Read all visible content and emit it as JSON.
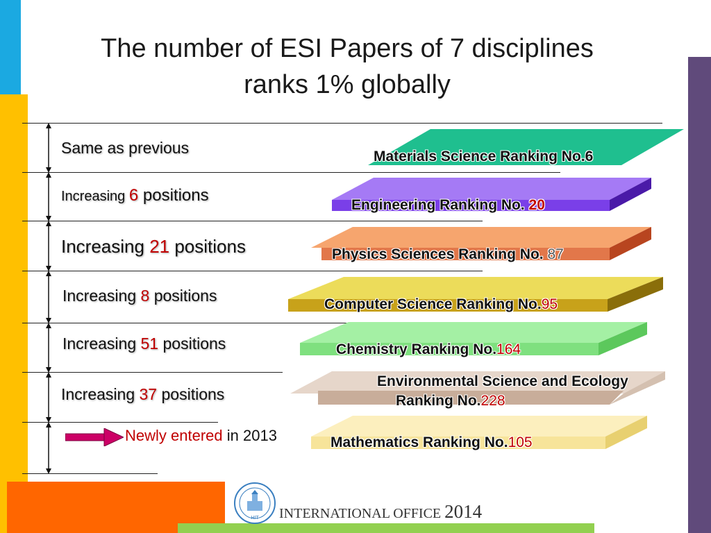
{
  "title_line1": "The number of ESI Papers of 7 disciplines",
  "title_line2": "ranks 1% globally",
  "rows": [
    {
      "change_text": "Same as previous",
      "discipline": "Materials Science Ranking No.",
      "rank": "6"
    },
    {
      "change_prefix": "Increasing ",
      "change_num": "6",
      "change_suffix": " positions",
      "discipline": "Engineering Ranking No. ",
      "rank": "20"
    },
    {
      "change_prefix": "Increasing ",
      "change_num": "21",
      "change_suffix": " positions",
      "discipline": "Physics Sciences Ranking No. ",
      "rank": "87"
    },
    {
      "change_prefix": "Increasing ",
      "change_num": "8",
      "change_suffix": " positions",
      "discipline": "Computer Science Ranking No.",
      "rank": "95"
    },
    {
      "change_prefix": "Increasing ",
      "change_num": "51",
      "change_suffix": " positions",
      "discipline": "Chemistry Ranking No.",
      "rank": "164"
    },
    {
      "change_prefix": "Increasing ",
      "change_num": "37",
      "change_suffix": " positions",
      "discipline_line1": "Environmental Science and Ecology",
      "discipline_line2": "Ranking No.",
      "rank": "228"
    },
    {
      "change_num_text": "Newly entered",
      "change_suffix": " in 2013",
      "discipline": "Mathematics Ranking No.",
      "rank": "105"
    }
  ],
  "footer": {
    "office": "INTERNATIONAL OFFICE ",
    "year": "2014",
    "logo_text": "HIT"
  },
  "colors": {
    "materials": "#1fbf8f",
    "engineering": "#8c5cf0",
    "physics": "#f79a5c",
    "computer": "#e8d34a",
    "chemistry": "#90ee90",
    "environmental": "#d9c3b3",
    "mathematics": "#fcebb0",
    "accent_red": "#c00000"
  }
}
